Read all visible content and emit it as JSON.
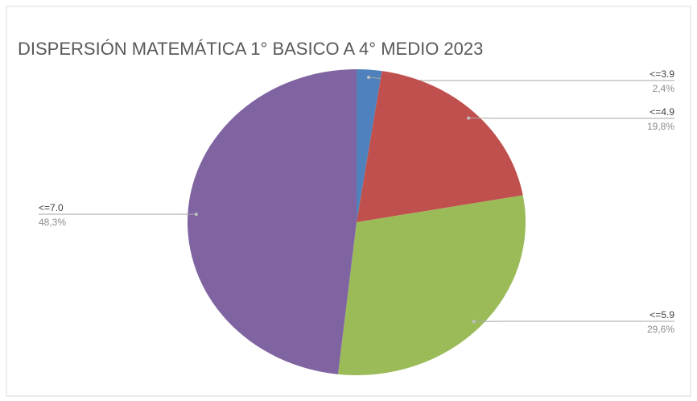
{
  "chart_data": {
    "type": "pie",
    "title": "DISPERSIÓN MATEMÁTICA 1° BASICO A 4° MEDIO 2023",
    "categories": [
      "<=3.9",
      "<=4.9",
      "<=5.9",
      "<=7.0"
    ],
    "values": [
      2.4,
      19.8,
      29.6,
      48.3
    ],
    "value_labels": [
      "2,4%",
      "19,8%",
      "29,6%",
      "48,3%"
    ],
    "colors": [
      "#4f81bd",
      "#c0504d",
      "#9bbb59",
      "#8064a2"
    ]
  }
}
